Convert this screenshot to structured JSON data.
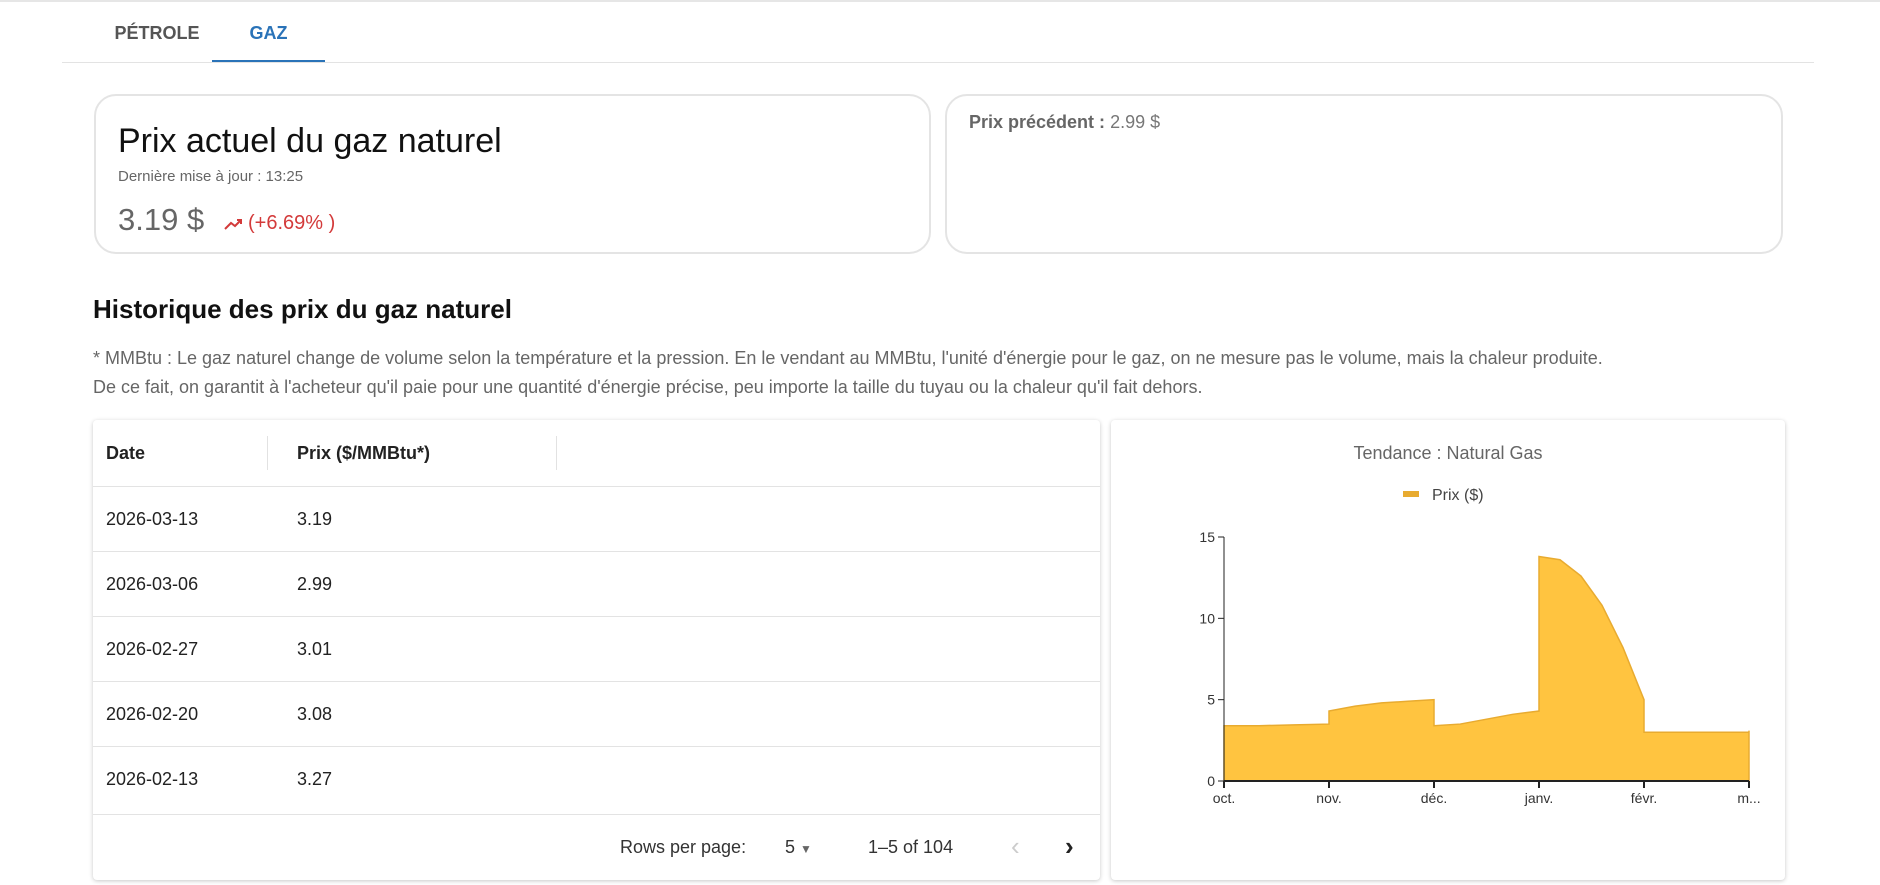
{
  "tabs": [
    {
      "label": "PÉTROLE",
      "active": false
    },
    {
      "label": "GAZ",
      "active": true
    }
  ],
  "current": {
    "title": "Prix actuel du gaz naturel",
    "updated": "Dernière mise à jour : 13:25",
    "price": "3.19 $",
    "trend_icon": "trending-up-icon",
    "change": "(+6.69% )",
    "change_color": "#d33a3a"
  },
  "previous": {
    "label": "Prix précédent :",
    "value": "2.99 $"
  },
  "history": {
    "title": "Historique des prix du gaz naturel",
    "note_line1": "* MMBtu : Le gaz naturel change de volume selon la température et la pression. En le vendant au MMBtu, l'unité d'énergie pour le gaz, on ne mesure pas le volume, mais la chaleur produite.",
    "note_line2": "De ce fait, on garantit à l'acheteur qu'il paie pour une quantité d'énergie précise, peu importe la taille du tuyau ou la chaleur qu'il fait dehors."
  },
  "table": {
    "columns": [
      "Date",
      "Prix ($/MMBtu*)"
    ],
    "rows": [
      [
        "2026-03-13",
        "3.19"
      ],
      [
        "2026-03-06",
        "2.99"
      ],
      [
        "2026-02-27",
        "3.01"
      ],
      [
        "2026-02-20",
        "3.08"
      ],
      [
        "2026-02-13",
        "3.27"
      ]
    ],
    "rows_per_page_label": "Rows per page:",
    "rows_per_page": "5",
    "range": "1–5 of 104"
  },
  "chart_data": {
    "type": "area",
    "title": "Tendance : Natural Gas",
    "legend": [
      "Prix ($)"
    ],
    "legend_placement": "top",
    "color": "#ffc440",
    "x_ticks": [
      "oct.",
      "nov.",
      "déc.",
      "janv.",
      "févr.",
      "m..."
    ],
    "y_ticks": [
      0,
      5,
      10,
      15
    ],
    "ylim": [
      0,
      15
    ],
    "series": [
      {
        "name": "Prix ($)",
        "segments": [
          {
            "month": "oct.",
            "values": [
              3.4,
              3.4,
              3.45,
              3.5
            ]
          },
          {
            "month": "nov.",
            "values": [
              4.3,
              4.6,
              4.8,
              4.9,
              5.0
            ]
          },
          {
            "month": "déc.",
            "values": [
              3.4,
              3.5,
              3.8,
              4.1,
              4.3
            ]
          },
          {
            "month": "janv.",
            "values": [
              13.8,
              13.6,
              12.6,
              10.8,
              8.2,
              5.0
            ]
          },
          {
            "month": "févr.",
            "values": [
              3.0,
              3.0,
              3.0,
              3.0
            ]
          },
          {
            "month": "m...",
            "values": [
              3.1
            ]
          }
        ]
      }
    ]
  }
}
